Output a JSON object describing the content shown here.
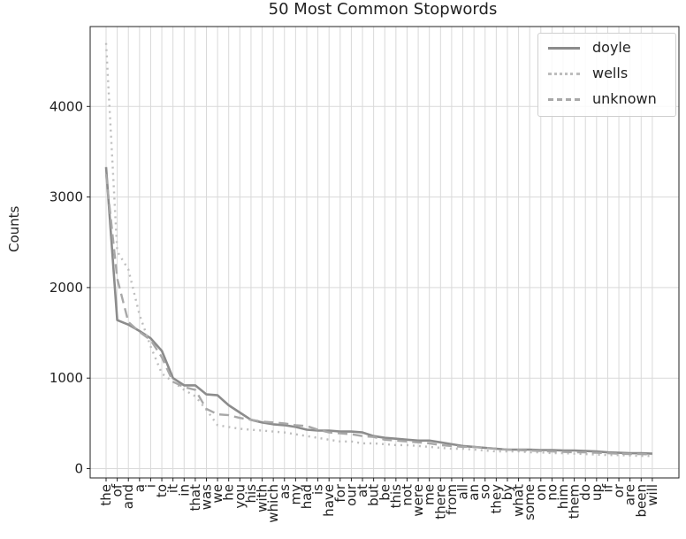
{
  "colors": {
    "doyle": "#8c8c8c",
    "wells": "#bdbdbd",
    "unknown": "#a8a8a8",
    "grid": "#d9d9d9",
    "axis": "#222222"
  },
  "chart_data": {
    "type": "line",
    "title": "50 Most Common Stopwords",
    "xlabel": "",
    "ylabel": "Counts",
    "ylim": [
      -100,
      4750
    ],
    "yticks": [
      0,
      1000,
      2000,
      3000,
      4000
    ],
    "grid": true,
    "legend_position": "top-right",
    "categories": [
      "the",
      "of",
      "and",
      "a",
      "i",
      "to",
      "it",
      "in",
      "that",
      "was",
      "we",
      "he",
      "you",
      "his",
      "with",
      "which",
      "as",
      "my",
      "had",
      "is",
      "have",
      "for",
      "our",
      "at",
      "but",
      "be",
      "this",
      "not",
      "were",
      "me",
      "there",
      "from",
      "all",
      "an",
      "so",
      "they",
      "by",
      "what",
      "some",
      "on",
      "no",
      "him",
      "them",
      "do",
      "up",
      "if",
      "or",
      "are",
      "been",
      "will"
    ],
    "series": [
      {
        "name": "doyle",
        "style": "solid",
        "values": [
          3330,
          1640,
          1590,
          1520,
          1440,
          1300,
          1000,
          920,
          920,
          820,
          810,
          700,
          620,
          540,
          510,
          490,
          480,
          460,
          430,
          420,
          420,
          410,
          410,
          400,
          360,
          340,
          330,
          320,
          310,
          310,
          290,
          270,
          250,
          240,
          230,
          220,
          210,
          210,
          210,
          205,
          205,
          200,
          200,
          195,
          190,
          180,
          175,
          170,
          170,
          165
        ]
      },
      {
        "name": "wells",
        "style": "dotted",
        "values": [
          4700,
          2400,
          2200,
          1700,
          1350,
          1050,
          960,
          870,
          800,
          650,
          480,
          460,
          440,
          430,
          420,
          410,
          400,
          380,
          360,
          340,
          320,
          300,
          300,
          280,
          280,
          270,
          260,
          260,
          250,
          240,
          230,
          220,
          220,
          210,
          200,
          190,
          190,
          190,
          180,
          180,
          170,
          170,
          165,
          160,
          155,
          150,
          150,
          145,
          140,
          140
        ]
      },
      {
        "name": "unknown",
        "style": "dashed",
        "values": [
          3250,
          2100,
          1620,
          1510,
          1420,
          1230,
          960,
          900,
          870,
          660,
          600,
          590,
          560,
          540,
          520,
          510,
          500,
          480,
          470,
          430,
          400,
          390,
          380,
          360,
          350,
          320,
          310,
          300,
          290,
          280,
          260,
          250,
          240,
          240,
          230,
          220,
          210,
          205,
          200,
          195,
          190,
          185,
          180,
          180,
          175,
          170,
          165,
          160,
          160,
          155
        ]
      }
    ]
  }
}
